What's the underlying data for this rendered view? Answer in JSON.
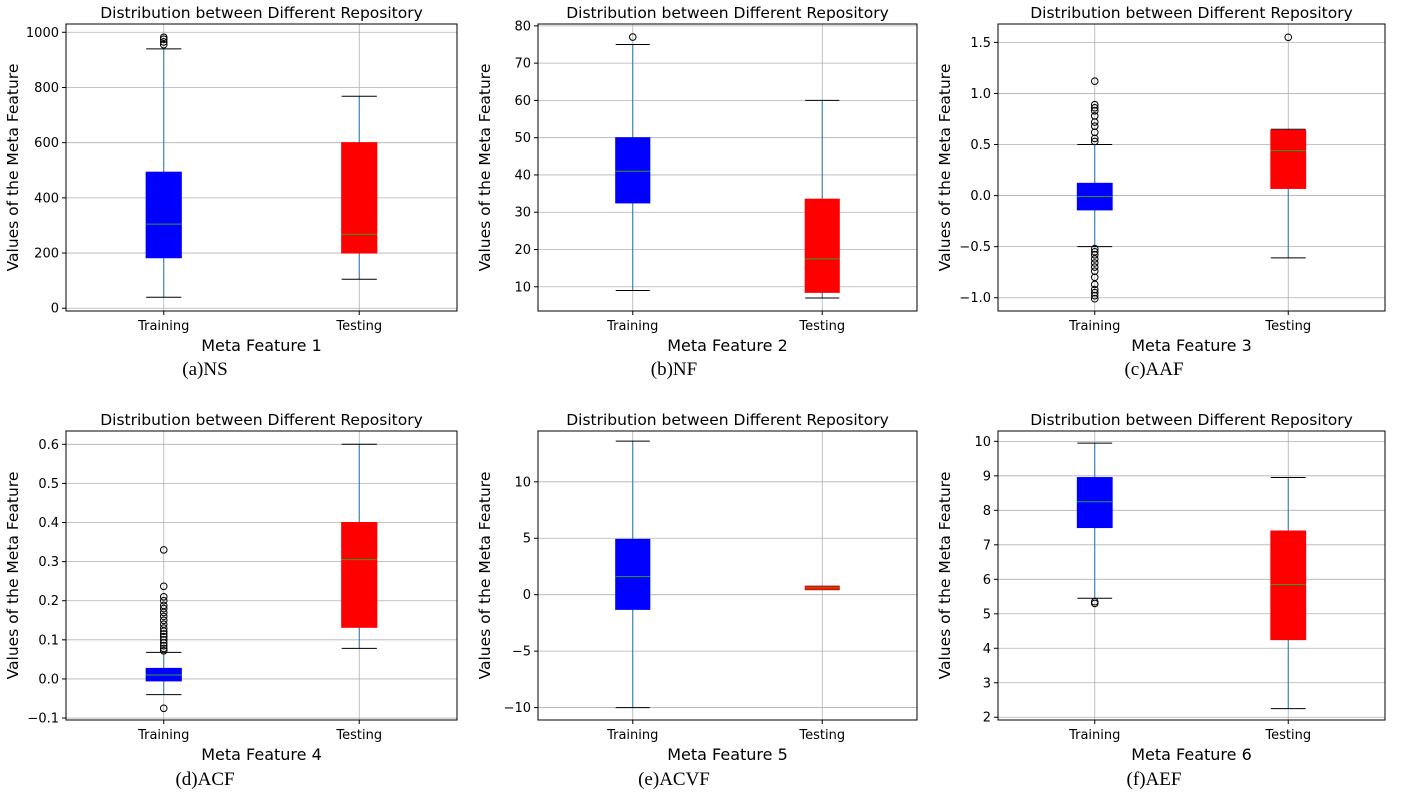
{
  "charts": [
    {
      "caption": "(a)NS",
      "chart_data": {
        "type": "box",
        "title": "Distribution between Different Repository",
        "xlabel": "Meta Feature 1",
        "ylabel": "Values of the Meta Feature",
        "categories": [
          "Training",
          "Testing"
        ],
        "ylim": [
          -10,
          1030
        ],
        "yticks": [
          0,
          200,
          400,
          600,
          800,
          1000
        ],
        "tick_labels": [
          "0",
          "200",
          "400",
          "600",
          "800",
          "1000"
        ],
        "grid": true,
        "boxes": [
          {
            "category": "Training",
            "color": "#0000ff",
            "whislo": 40,
            "q1": 183,
            "med": 305,
            "q3": 493,
            "whishi": 940,
            "fliers": [
              955,
              965,
              975,
              982
            ]
          },
          {
            "category": "Testing",
            "color": "#ff0000",
            "whislo": 105,
            "q1": 200,
            "med": 268,
            "q3": 600,
            "whishi": 768,
            "fliers": []
          }
        ]
      }
    },
    {
      "caption": "(b)NF",
      "chart_data": {
        "type": "box",
        "title": "Distribution between Different Repository",
        "xlabel": "Meta Feature 2",
        "ylabel": "Values of the Meta Feature",
        "categories": [
          "Training",
          "Testing"
        ],
        "ylim": [
          3.5,
          80.5
        ],
        "yticks": [
          10,
          20,
          30,
          40,
          50,
          60,
          70,
          80
        ],
        "tick_labels": [
          "10",
          "20",
          "30",
          "40",
          "50",
          "60",
          "70",
          "80"
        ],
        "grid": true,
        "boxes": [
          {
            "category": "Training",
            "color": "#0000ff",
            "whislo": 9,
            "q1": 32.5,
            "med": 41,
            "q3": 50,
            "whishi": 75,
            "fliers": [
              77
            ]
          },
          {
            "category": "Testing",
            "color": "#ff0000",
            "whislo": 7,
            "q1": 8.5,
            "med": 17.5,
            "q3": 33.5,
            "whishi": 60,
            "fliers": []
          }
        ]
      }
    },
    {
      "caption": "(c)AAF",
      "chart_data": {
        "type": "box",
        "title": "Distribution between Different Repository",
        "xlabel": "Meta Feature 3",
        "ylabel": "Values of the Meta Feature",
        "categories": [
          "Training",
          "Testing"
        ],
        "ylim": [
          -1.13,
          1.68
        ],
        "yticks": [
          -1.0,
          -0.5,
          0.0,
          0.5,
          1.0,
          1.5
        ],
        "tick_labels": [
          "−1.0",
          "−0.5",
          "0.0",
          "0.5",
          "1.0",
          "1.5"
        ],
        "grid": true,
        "boxes": [
          {
            "category": "Training",
            "color": "#0000ff",
            "whislo": -0.5,
            "q1": -0.14,
            "med": -0.01,
            "q3": 0.12,
            "whishi": 0.5,
            "fliers": [
              0.53,
              0.56,
              0.62,
              0.68,
              0.72,
              0.78,
              0.83,
              0.86,
              0.89,
              1.12,
              -0.52,
              -0.55,
              -0.58,
              -0.62,
              -0.66,
              -0.7,
              -0.74,
              -0.8,
              -0.87,
              -0.92,
              -0.95,
              -0.98,
              -1.01
            ]
          },
          {
            "category": "Testing",
            "color": "#ff0000",
            "whislo": -0.61,
            "q1": 0.07,
            "med": 0.44,
            "q3": 0.64,
            "whishi": 0.65,
            "fliers": [
              1.55
            ]
          }
        ]
      }
    },
    {
      "caption": "(d)ACF",
      "chart_data": {
        "type": "box",
        "title": "Distribution between Different Repository",
        "xlabel": "Meta Feature 4",
        "ylabel": "Values of the Meta Feature",
        "categories": [
          "Training",
          "Testing"
        ],
        "ylim": [
          -0.105,
          0.634
        ],
        "yticks": [
          -0.1,
          0.0,
          0.1,
          0.2,
          0.3,
          0.4,
          0.5,
          0.6
        ],
        "tick_labels": [
          "−0.1",
          "0.0",
          "0.1",
          "0.2",
          "0.3",
          "0.4",
          "0.5",
          "0.6"
        ],
        "grid": true,
        "boxes": [
          {
            "category": "Training",
            "color": "#0000ff",
            "whislo": -0.04,
            "q1": -0.005,
            "med": 0.01,
            "q3": 0.027,
            "whishi": 0.068,
            "fliers": [
              0.072,
              0.078,
              0.085,
              0.092,
              0.1,
              0.108,
              0.115,
              0.122,
              0.13,
              0.14,
              0.15,
              0.16,
              0.17,
              0.18,
              0.188,
              0.2,
              0.21,
              0.237,
              0.33,
              -0.075
            ]
          },
          {
            "category": "Testing",
            "color": "#ff0000",
            "whislo": 0.078,
            "q1": 0.132,
            "med": 0.305,
            "q3": 0.4,
            "whishi": 0.6,
            "fliers": []
          }
        ]
      }
    },
    {
      "caption": "(e)ACVF",
      "chart_data": {
        "type": "box",
        "title": "Distribution between Different Repository",
        "xlabel": "Meta Feature 5",
        "ylabel": "Values of the Meta Feature",
        "categories": [
          "Training",
          "Testing"
        ],
        "ylim": [
          -11.1,
          14.5
        ],
        "yticks": [
          -10,
          -5,
          0,
          5,
          10
        ],
        "tick_labels": [
          "−10",
          "−5",
          "0",
          "5",
          "10"
        ],
        "grid": true,
        "boxes": [
          {
            "category": "Training",
            "color": "#0000ff",
            "whislo": -10,
            "q1": -1.3,
            "med": 1.6,
            "q3": 4.9,
            "whishi": 13.6,
            "fliers": []
          },
          {
            "category": "Testing",
            "color": "#ff0000",
            "whislo": 0.45,
            "q1": 0.45,
            "med": 0.6,
            "q3": 0.75,
            "whishi": 0.75,
            "fliers": []
          }
        ]
      }
    },
    {
      "caption": "(f)AEF",
      "chart_data": {
        "type": "box",
        "title": "Distribution between Different Repository",
        "xlabel": "Meta Feature 6",
        "ylabel": "Values of the Meta Feature",
        "categories": [
          "Training",
          "Testing"
        ],
        "ylim": [
          1.92,
          10.3
        ],
        "yticks": [
          2,
          3,
          4,
          5,
          6,
          7,
          8,
          9,
          10
        ],
        "tick_labels": [
          "2",
          "3",
          "4",
          "5",
          "6",
          "7",
          "8",
          "9",
          "10"
        ],
        "grid": true,
        "boxes": [
          {
            "category": "Training",
            "color": "#0000ff",
            "whislo": 5.45,
            "q1": 7.5,
            "med": 8.25,
            "q3": 8.95,
            "whishi": 9.95,
            "fliers": [
              5.3,
              5.35
            ]
          },
          {
            "category": "Testing",
            "color": "#ff0000",
            "whislo": 2.25,
            "q1": 4.25,
            "med": 5.85,
            "q3": 7.4,
            "whishi": 8.95,
            "fliers": []
          }
        ]
      }
    }
  ]
}
